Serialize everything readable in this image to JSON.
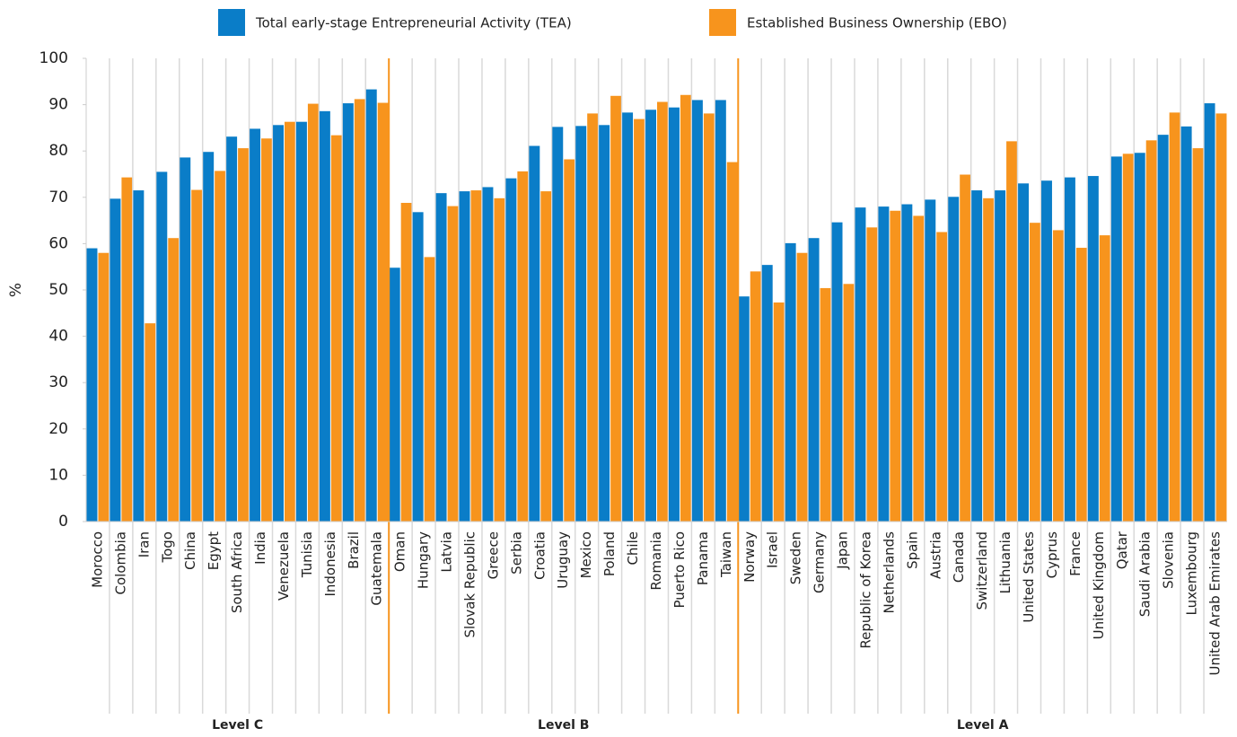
{
  "chart_data": {
    "type": "bar",
    "y_label": "%",
    "groups": [
      {
        "name": "Level C",
        "categories": [
          "Morocco",
          "Colombia",
          "Iran",
          "Togo",
          "China",
          "Egypt",
          "South Africa",
          "India",
          "Venezuela",
          "Tunisia",
          "Indonesia",
          "Brazil",
          "Guatemala"
        ]
      },
      {
        "name": "Level B",
        "categories": [
          "Oman",
          "Hungary",
          "Latvia",
          "Slovak Republic",
          "Greece",
          "Serbia",
          "Croatia",
          "Uruguay",
          "Mexico",
          "Poland",
          "Chile",
          "Romania",
          "Puerto Rico",
          "Panama",
          "Taiwan"
        ]
      },
      {
        "name": "Level A",
        "categories": [
          "Norway",
          "Israel",
          "Sweden",
          "Germany",
          "Japan",
          "Republic of Korea",
          "Netherlands",
          "Spain",
          "Austria",
          "Canada",
          "Switzerland",
          "Lithuania",
          "United States",
          "Cyprus",
          "France",
          "United Kingdom",
          "Qatar",
          "Saudi Arabia",
          "Slovenia",
          "Luxembourg",
          "United Arab Emirates"
        ]
      }
    ],
    "series": [
      {
        "name": "Total early-stage Entrepreneurial Activity (TEA)",
        "color": "#0a7dc8",
        "values": [
          59.0,
          69.7,
          71.5,
          75.5,
          78.6,
          79.8,
          83.1,
          84.8,
          85.6,
          86.3,
          88.6,
          90.3,
          93.3,
          54.8,
          66.8,
          70.9,
          71.3,
          72.2,
          74.1,
          81.1,
          85.2,
          85.4,
          85.6,
          88.3,
          88.9,
          89.4,
          91.0,
          91.0,
          48.6,
          55.4,
          60.1,
          61.2,
          64.6,
          67.8,
          68.0,
          68.5,
          69.5,
          70.1,
          71.5,
          71.5,
          73.0,
          73.6,
          74.3,
          74.6,
          78.8,
          79.6,
          83.5,
          85.3,
          90.3
        ]
      },
      {
        "name": "Established Business Ownership (EBO)",
        "color": "#f7941d",
        "values": [
          58.0,
          74.3,
          42.8,
          61.2,
          71.6,
          75.7,
          80.6,
          82.7,
          86.3,
          90.2,
          83.4,
          91.2,
          90.4,
          68.8,
          57.1,
          68.1,
          71.5,
          69.8,
          75.6,
          71.3,
          78.2,
          88.1,
          91.9,
          86.9,
          90.6,
          92.1,
          88.1,
          77.6,
          54.0,
          47.3,
          58.0,
          50.4,
          51.3,
          63.5,
          67.1,
          66.0,
          62.5,
          74.9,
          69.8,
          82.1,
          64.5,
          62.9,
          59.1,
          61.8,
          79.4,
          82.3,
          88.3,
          80.6,
          88.1
        ]
      }
    ],
    "ylim": [
      0,
      100
    ],
    "yticks": [
      0,
      10,
      20,
      30,
      40,
      50,
      60,
      70,
      80,
      90,
      100
    ],
    "separator_color": "#f7941d"
  }
}
